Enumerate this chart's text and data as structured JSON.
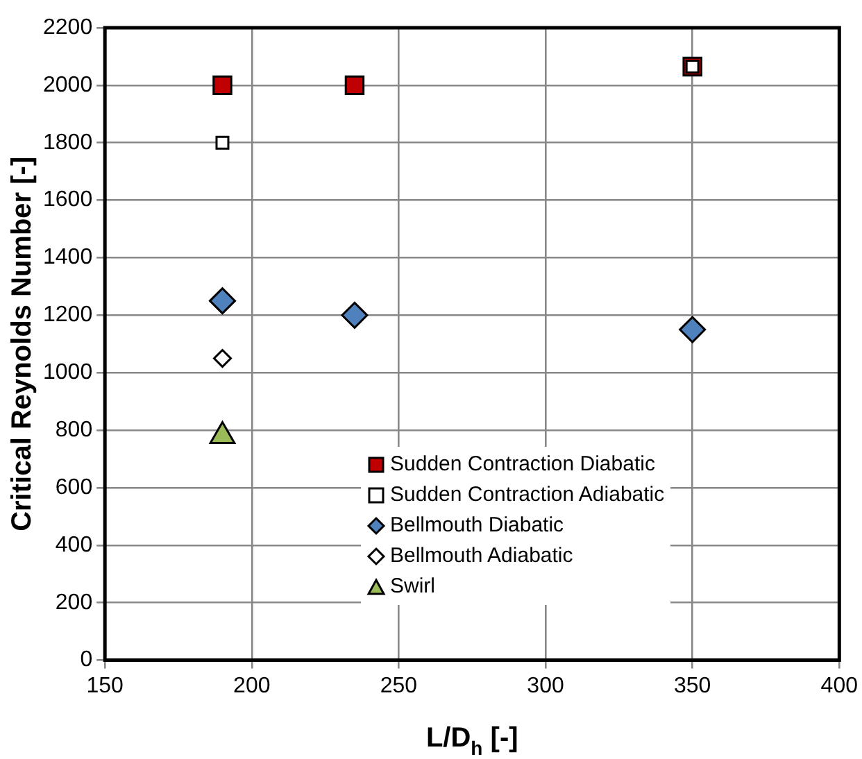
{
  "chart_data": {
    "type": "scatter",
    "xlabel": "L/D$_{h}$ [-]",
    "ylabel": "Critical Reynolds Number [-]",
    "xlim": [
      150,
      400
    ],
    "xticks": [
      150,
      200,
      250,
      300,
      350,
      400
    ],
    "ylim": [
      0,
      2200
    ],
    "yticks": [
      0,
      200,
      400,
      600,
      800,
      1000,
      1200,
      1400,
      1600,
      1800,
      2000,
      2200
    ],
    "grid": true,
    "legend": "bottom right",
    "series": [
      {
        "name": "Sudden Contraction Diabatic",
        "color": "#c00000",
        "marker": "square",
        "x": [
          190,
          235,
          350
        ],
        "values": [
          2000,
          2000,
          2065
        ]
      },
      {
        "name": "Sudden Contraction Adiabatic",
        "color": "#ffffff",
        "marker": "square",
        "x": [
          190,
          350
        ],
        "values": [
          1800,
          2065
        ]
      },
      {
        "name": "Bellmouth Diabatic",
        "color": "#4f81bd",
        "marker": "diamond",
        "x": [
          190,
          235,
          350
        ],
        "values": [
          1250,
          1200,
          1150
        ]
      },
      {
        "name": "Bellmouth Adiabatic",
        "color": "#ffffff",
        "marker": "diamond",
        "x": [
          190
        ],
        "values": [
          1050
        ]
      },
      {
        "name": "Swirl",
        "color": "#9bbb59",
        "marker": "triangle",
        "x": [
          190
        ],
        "values": [
          780
        ]
      }
    ]
  }
}
